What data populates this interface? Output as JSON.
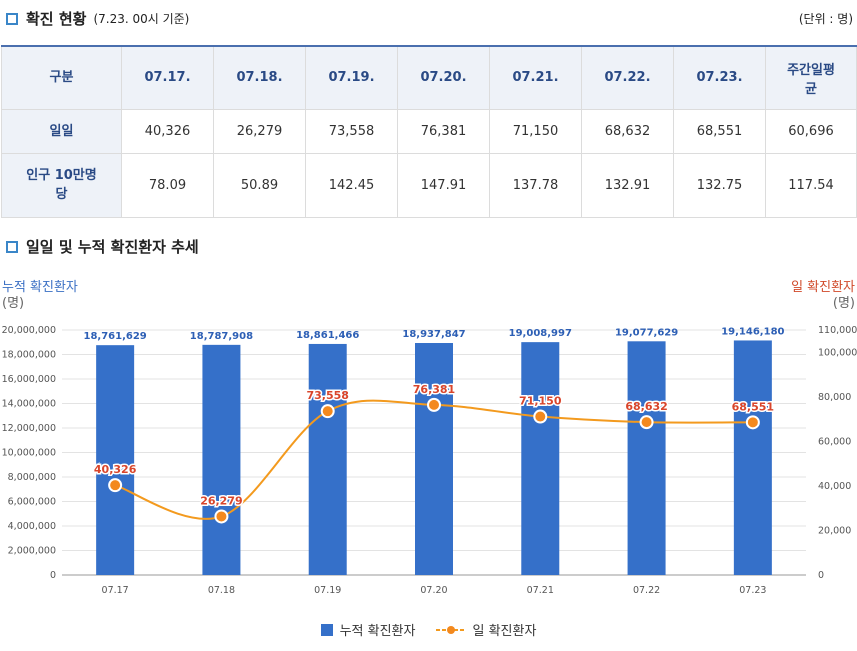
{
  "section1": {
    "title": "확진 현황",
    "subtitle": "(7.23. 00시 기준)",
    "unit": "(단위 : 명)"
  },
  "table": {
    "headers": [
      "구분",
      "07.17.",
      "07.18.",
      "07.19.",
      "07.20.",
      "07.21.",
      "07.22.",
      "07.23.",
      "주간일평균"
    ],
    "rows": [
      {
        "label": "일일",
        "values": [
          "40,326",
          "26,279",
          "73,558",
          "76,381",
          "71,150",
          "68,632",
          "68,551",
          "60,696"
        ]
      },
      {
        "label": "인구 10만명당",
        "values": [
          "78.09",
          "50.89",
          "142.45",
          "147.91",
          "137.78",
          "132.91",
          "132.75",
          "117.54"
        ]
      }
    ]
  },
  "section2": {
    "title": "일일 및 누적 확진환자 추세"
  },
  "axis_titles": {
    "left": "누적 확진환자",
    "left_unit": "(명)",
    "right": "일 확진환자",
    "right_unit": "(명)"
  },
  "legend": {
    "bar": "누적 확진환자",
    "line": "일 확진환자"
  },
  "colors": {
    "bar": "#3570c9",
    "line": "#f39a1e",
    "marker": "#f3891e",
    "line_label": "#d9452b",
    "bar_label": "#2d5fb5"
  },
  "chart_data": {
    "type": "bar+line",
    "categories": [
      "07.17",
      "07.18",
      "07.19",
      "07.20",
      "07.21",
      "07.22",
      "07.23"
    ],
    "series": [
      {
        "name": "누적 확진환자",
        "type": "bar",
        "axis": "left",
        "values": [
          18761629,
          18787908,
          18861466,
          18937847,
          19008997,
          19077629,
          19146180
        ],
        "labels": [
          "18,761,629",
          "18,787,908",
          "18,861,466",
          "18,937,847",
          "19,008,997",
          "19,077,629",
          "19,146,180"
        ]
      },
      {
        "name": "일 확진환자",
        "type": "line",
        "axis": "right",
        "values": [
          40326,
          26279,
          73558,
          76381,
          71150,
          68632,
          68551
        ],
        "labels": [
          "40,326",
          "26,279",
          "73,558",
          "76,381",
          "71,150",
          "68,632",
          "68,551"
        ]
      }
    ],
    "y_left": {
      "min": 0,
      "max": 20000000,
      "ticks": [
        0,
        2000000,
        4000000,
        6000000,
        8000000,
        10000000,
        12000000,
        14000000,
        16000000,
        18000000,
        20000000
      ],
      "tick_labels": [
        "0",
        "2,000,000",
        "4,000,000",
        "6,000,000",
        "8,000,000",
        "10,000,000",
        "12,000,000",
        "14,000,000",
        "16,000,000",
        "18,000,000",
        "20,000,000"
      ]
    },
    "y_right": {
      "min": 0,
      "max": 110000,
      "ticks": [
        0,
        20000,
        40000,
        60000,
        80000,
        100000,
        110000
      ],
      "tick_labels": [
        "0",
        "20,000",
        "40,000",
        "60,000",
        "80,000",
        "100,000",
        "110,000"
      ]
    },
    "grid": true,
    "legend_position": "bottom-center"
  }
}
